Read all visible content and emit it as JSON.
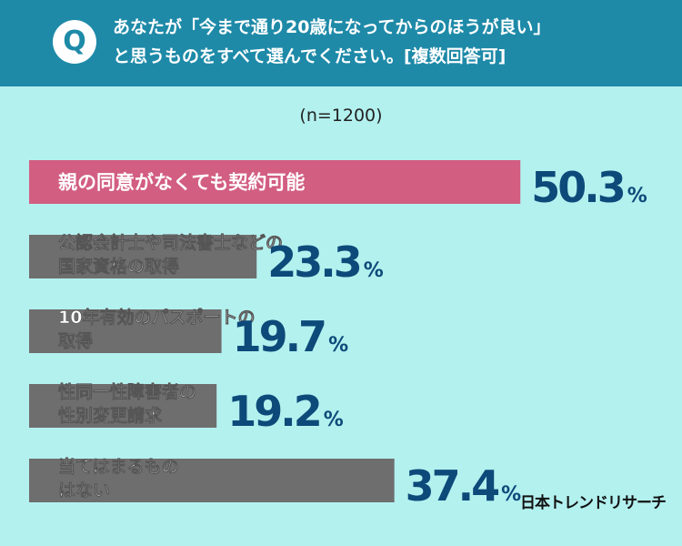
{
  "header": {
    "badge": "Q",
    "question_line1": "あなたが「今まで通り20歳になってからのほうが良い」",
    "question_line2": "と思うものをすべて選んでください。[複数回答可]"
  },
  "sample_size": "(n=1200)",
  "unit": "%",
  "brand": "日本トレンドリサーチ",
  "colors": {
    "header": "#1e8aa8",
    "background": "#b3f1ef",
    "highlight_bar": "#d25e82",
    "bar": "#6e6e6e",
    "value_text": "#0d4a7a"
  },
  "chart_data": {
    "type": "bar",
    "orientation": "horizontal",
    "categories": [
      [
        "親の同意がなくても契約可能"
      ],
      [
        "公認会計士や司法書士などの",
        "国家資格の取得"
      ],
      [
        "10年有効のパスポートの",
        "取得"
      ],
      [
        "性同一性障害者の",
        "性別変更請求"
      ],
      [
        "当てはまるもの",
        "はない"
      ]
    ],
    "values": [
      "50.3",
      "23.3",
      "19.7",
      "19.2",
      "37.4"
    ],
    "highlight_index": 0
  }
}
